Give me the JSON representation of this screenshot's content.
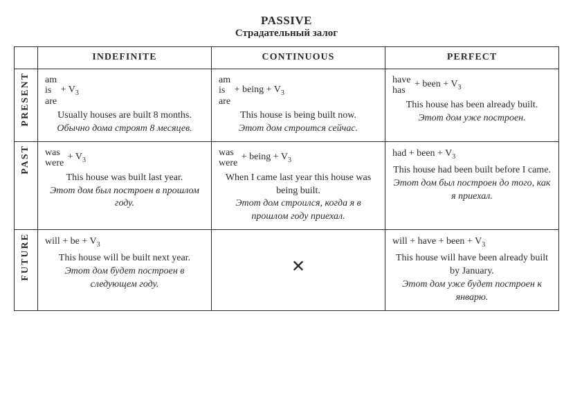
{
  "title": "PASSIVE",
  "subtitle": "Страдательный залог",
  "columns": [
    "INDEFINITE",
    "CONTINUOUS",
    "PERFECT"
  ],
  "rows": [
    "PRESENT",
    "PAST",
    "FUTURE"
  ],
  "cells": {
    "present": {
      "indefinite": {
        "aux": [
          "am",
          "is",
          "are"
        ],
        "rest": "+ V",
        "sub": "3",
        "en": "Usually houses are built 8 months.",
        "ru": "Обычно дома строят 8 ме­сяцев."
      },
      "continuous": {
        "aux": [
          "am",
          "is",
          "are"
        ],
        "rest": "+ being + V",
        "sub": "3",
        "en": "This house is being built now.",
        "ru": "Этот дом строится сейчас."
      },
      "perfect": {
        "aux": [
          "have",
          "has"
        ],
        "rest": "+ been + V",
        "sub": "3",
        "en": "This house has been already built.",
        "ru": "Этот дом уже построен."
      }
    },
    "past": {
      "indefinite": {
        "aux": [
          "was",
          "were"
        ],
        "rest": "+ V",
        "sub": "3",
        "en": "This house was built last year.",
        "ru": "Этот дом был построен в прошлом году."
      },
      "continuous": {
        "aux": [
          "was",
          "were"
        ],
        "rest": "+ being + V",
        "sub": "3",
        "en": "When I came last year this house was being built.",
        "ru": "Этот дом строился, когда я в прошлом году приехал."
      },
      "perfect": {
        "aux_inline": "had + been + V",
        "sub": "3",
        "en": "This house had been built before I came.",
        "ru": "Этот дом был построен до того, как я приехал."
      }
    },
    "future": {
      "indefinite": {
        "aux_inline": "will + be + V",
        "sub": "3",
        "en": "This house will be built next year.",
        "ru": "Этот дом будет построен в следующем году."
      },
      "continuous": {
        "cross": "×"
      },
      "perfect": {
        "aux_inline": "will + have + been + V",
        "sub": "3",
        "en": "This house will have been already built by January.",
        "ru": "Этот дом уже будет построен к январю."
      }
    }
  }
}
